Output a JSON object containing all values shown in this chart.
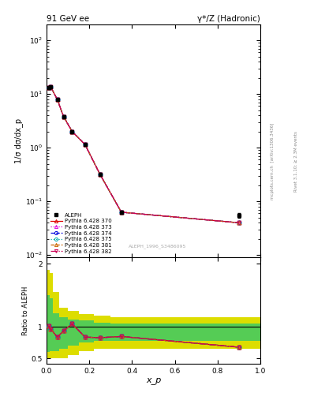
{
  "title_left": "91 GeV ee",
  "title_right": "γ*/Z (Hadronic)",
  "ylabel_main": "1/σ dσ/dx_p",
  "ylabel_ratio": "Ratio to ALEPH",
  "xlabel": "x_p",
  "rivet_label": "Rivet 3.1.10; ≥ 2.3M events",
  "ref_label": "ALEPH_1996_S3486095",
  "arxiv_label": "[arXiv:1306.3436]",
  "mcplots_label": "mcplots.cern.ch",
  "data_x": [
    0.01,
    0.02,
    0.05,
    0.08,
    0.12,
    0.18,
    0.25,
    0.35,
    0.9
  ],
  "data_y": [
    13.0,
    13.5,
    8.0,
    3.8,
    2.0,
    1.15,
    0.32,
    0.063,
    0.055
  ],
  "data_yerr": [
    0.6,
    0.6,
    0.35,
    0.18,
    0.1,
    0.06,
    0.016,
    0.005,
    0.005
  ],
  "mc_x": [
    0.01,
    0.02,
    0.05,
    0.08,
    0.12,
    0.18,
    0.25,
    0.35,
    0.9
  ],
  "mc_y": [
    13.0,
    13.5,
    8.0,
    3.8,
    2.0,
    1.15,
    0.32,
    0.063,
    0.04
  ],
  "ratio_x": [
    0.01,
    0.02,
    0.05,
    0.08,
    0.12,
    0.18,
    0.25,
    0.35,
    0.9
  ],
  "ratio_y": [
    1.02,
    0.97,
    0.84,
    0.94,
    1.05,
    0.84,
    0.83,
    0.85,
    0.68
  ],
  "yellow_band_xedges": [
    0.0,
    0.015,
    0.03,
    0.06,
    0.1,
    0.15,
    0.22,
    0.3,
    0.45,
    1.0
  ],
  "yellow_band_upper": [
    1.9,
    1.85,
    1.55,
    1.3,
    1.25,
    1.2,
    1.18,
    1.15,
    1.15,
    1.15
  ],
  "yellow_band_lower": [
    0.5,
    0.5,
    0.5,
    0.5,
    0.55,
    0.62,
    0.65,
    0.65,
    0.65,
    0.65
  ],
  "green_band_xedges": [
    0.0,
    0.015,
    0.03,
    0.06,
    0.1,
    0.15,
    0.22,
    0.3,
    0.45,
    1.0
  ],
  "green_band_upper": [
    1.5,
    1.45,
    1.22,
    1.15,
    1.12,
    1.1,
    1.07,
    1.05,
    1.05,
    1.05
  ],
  "green_band_lower": [
    0.6,
    0.62,
    0.62,
    0.65,
    0.7,
    0.75,
    0.78,
    0.78,
    0.78,
    0.78
  ],
  "mc_configs": [
    {
      "key": "370",
      "color": "#dd0000",
      "ls": "-",
      "marker": "^",
      "label": "Pythia 6.428 370"
    },
    {
      "key": "373",
      "color": "#dd00dd",
      "ls": ":",
      "marker": "^",
      "label": "Pythia 6.428 373"
    },
    {
      "key": "374",
      "color": "#0000dd",
      "ls": "--",
      "marker": "o",
      "label": "Pythia 6.428 374"
    },
    {
      "key": "375",
      "color": "#00aaaa",
      "ls": ":",
      "marker": "o",
      "label": "Pythia 6.428 375"
    },
    {
      "key": "381",
      "color": "#cc6600",
      "ls": "--",
      "marker": "^",
      "label": "Pythia 6.428 381"
    },
    {
      "key": "382",
      "color": "#cc0055",
      "ls": "-.",
      "marker": "v",
      "label": "Pythia 6.428 382"
    }
  ],
  "data_color": "#000000",
  "green_color": "#55cc55",
  "yellow_color": "#dddd00",
  "ylim_main": [
    0.009,
    200
  ],
  "ylim_ratio": [
    0.42,
    2.1
  ],
  "xlim": [
    0.0,
    1.0
  ],
  "yticks_ratio": [
    0.5,
    1.0,
    2.0
  ],
  "ytick_labels_ratio": [
    "0.5",
    "1",
    "2"
  ]
}
